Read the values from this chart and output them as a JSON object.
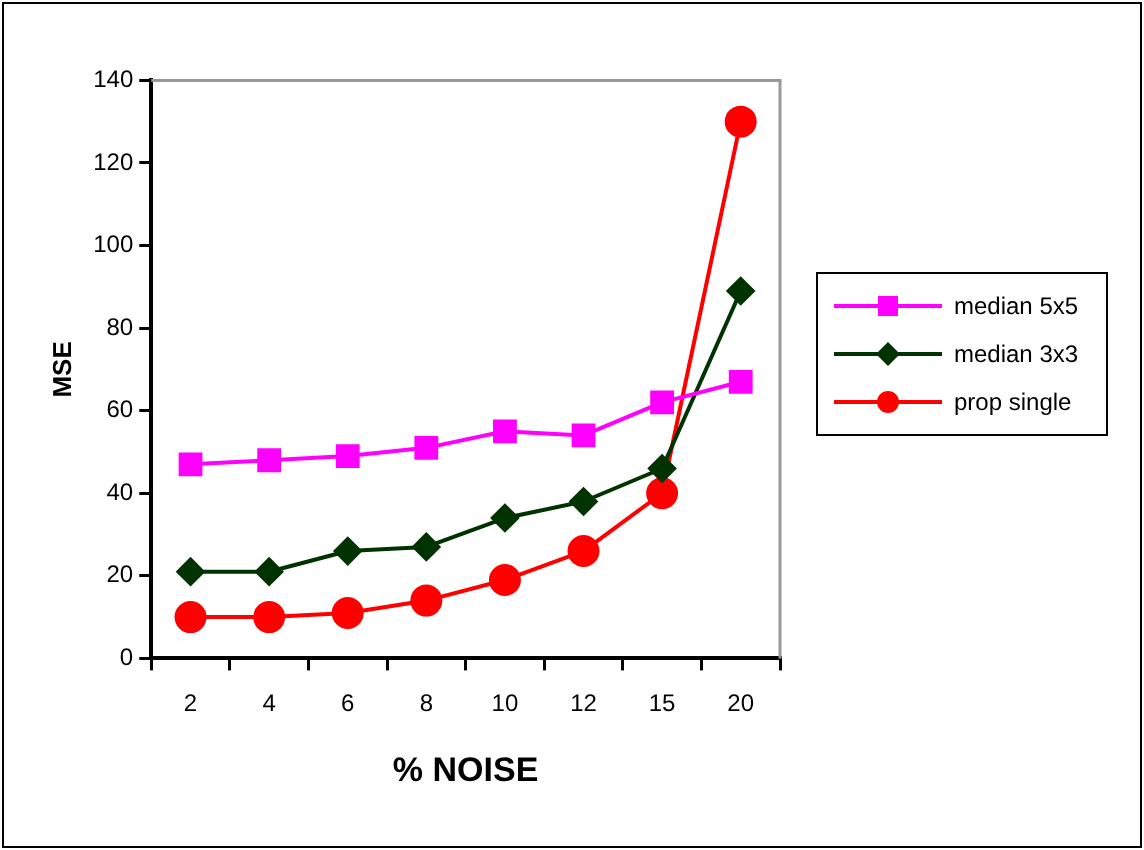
{
  "chart_data": {
    "type": "line",
    "xlabel": "% NOISE",
    "ylabel": "MSE",
    "categories": [
      "2",
      "4",
      "6",
      "8",
      "10",
      "12",
      "15",
      "20"
    ],
    "series": [
      {
        "name": "median  5x5",
        "color": "#ff00ff",
        "marker": "square",
        "values": [
          47,
          48,
          49,
          51,
          55,
          54,
          62,
          67
        ]
      },
      {
        "name": "median  3x3",
        "color": "#003300",
        "marker": "diamond",
        "values": [
          21,
          21,
          26,
          27,
          34,
          38,
          46,
          89
        ]
      },
      {
        "name": "prop single",
        "color": "#ff0000",
        "marker": "circle",
        "values": [
          10,
          10,
          11,
          14,
          19,
          26,
          40,
          130
        ]
      }
    ],
    "ylim": [
      0,
      140
    ],
    "yticks": [
      0,
      20,
      40,
      60,
      80,
      100,
      120,
      140
    ],
    "grid": false,
    "legend": "right"
  }
}
